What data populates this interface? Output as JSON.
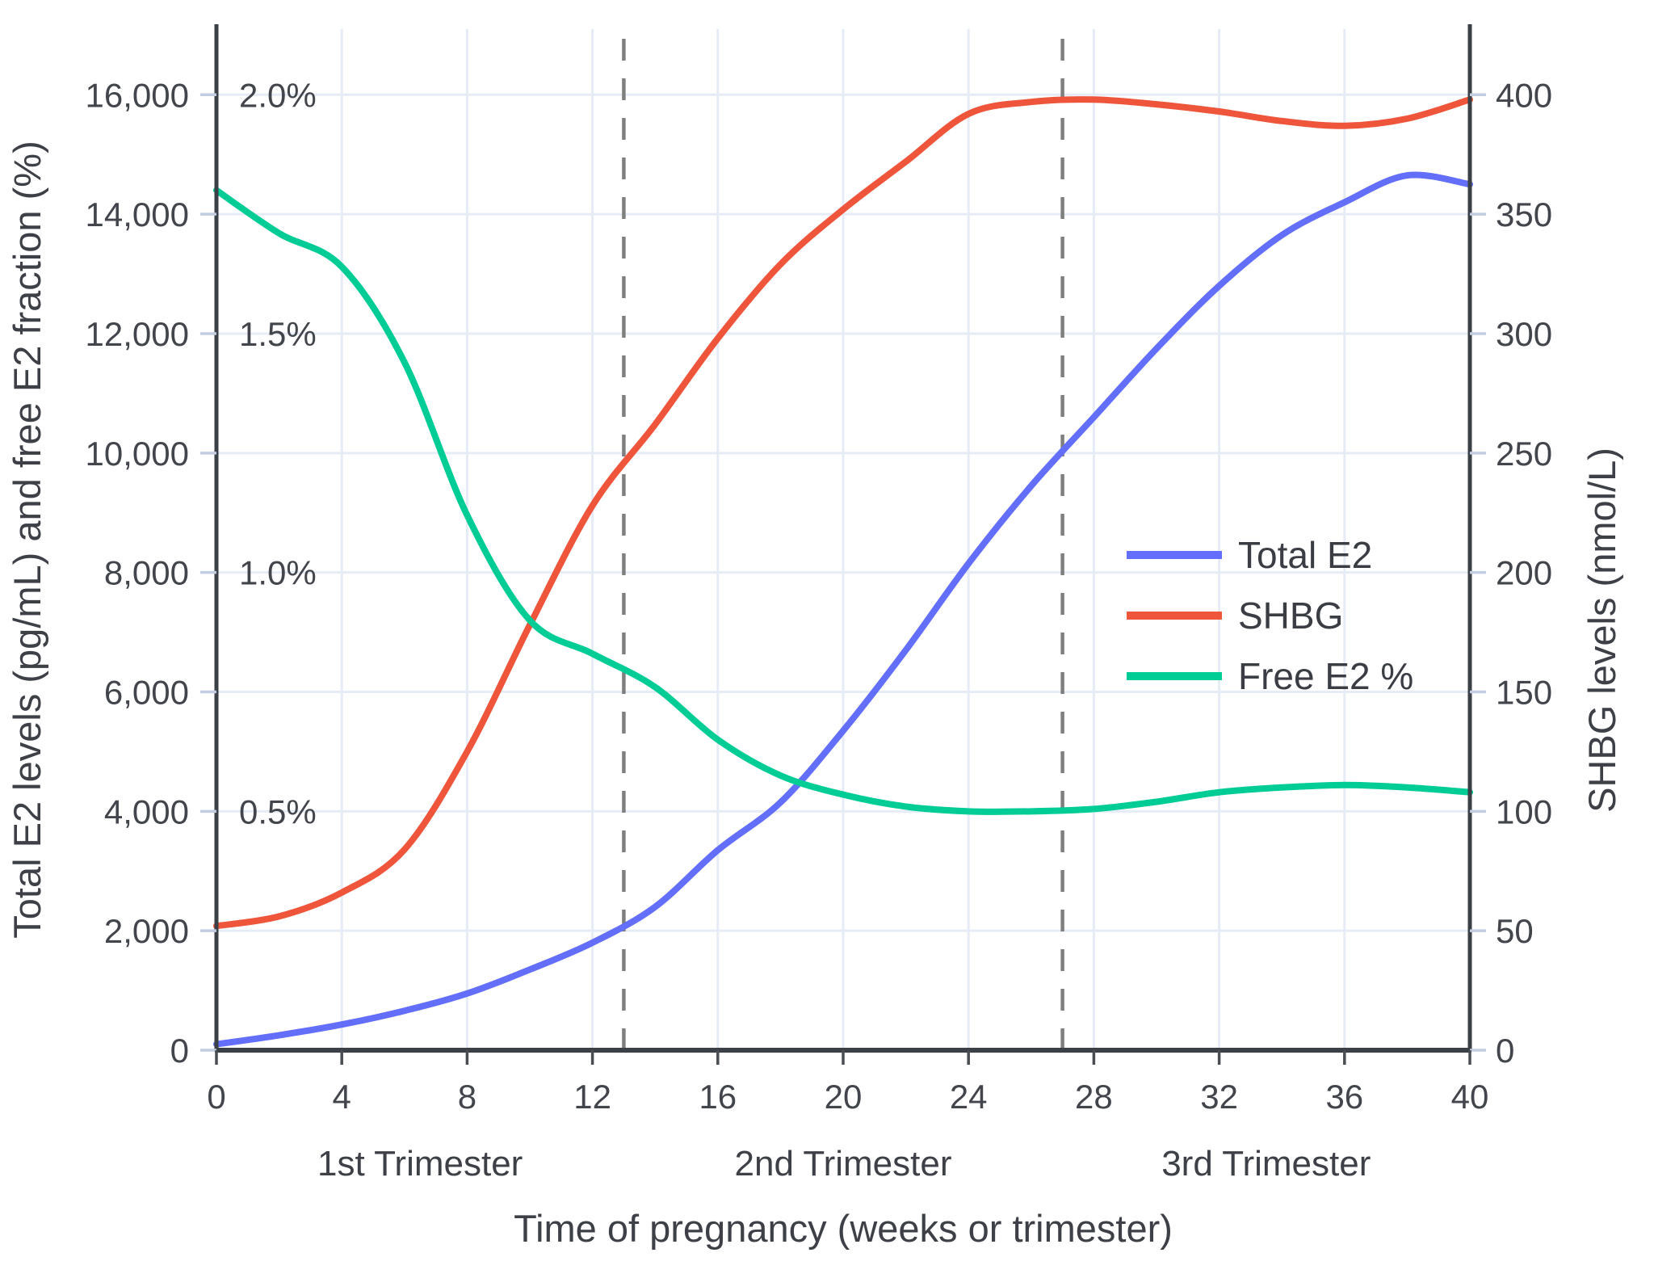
{
  "chart_data": {
    "type": "line",
    "title": "",
    "xlabel": "Time of pregnancy (weeks or trimester)",
    "ylabel_left": "Total E2 levels (pg/mL) and free E2 fraction (%)",
    "ylabel_right": "SHBG levels (nmol/L)",
    "x": [
      0,
      2,
      4,
      6,
      8,
      10,
      12,
      14,
      16,
      18,
      20,
      22,
      24,
      26,
      28,
      30,
      32,
      34,
      36,
      38,
      40
    ],
    "series": [
      {
        "name": "Total E2",
        "axis": "left",
        "color": "#636EFA",
        "values": [
          100,
          250,
          430,
          660,
          950,
          1350,
          1800,
          2400,
          3350,
          4150,
          5350,
          6700,
          8150,
          9450,
          10600,
          11750,
          12800,
          13650,
          14200,
          14650,
          14500
        ]
      },
      {
        "name": "SHBG",
        "axis": "right",
        "color": "#EF553B",
        "values": [
          52,
          56,
          66,
          84,
          125,
          178,
          228,
          262,
          298,
          329,
          352,
          372,
          392,
          397,
          398,
          396,
          393,
          389,
          387,
          390,
          398
        ]
      },
      {
        "name": "Free E2 %",
        "axis": "left_pct",
        "color": "#00CC96",
        "values": [
          1.8,
          1.71,
          1.64,
          1.44,
          1.12,
          0.9,
          0.83,
          0.76,
          0.65,
          0.575,
          0.535,
          0.51,
          0.5,
          0.5,
          0.505,
          0.52,
          0.54,
          0.55,
          0.555,
          0.55,
          0.54
        ]
      }
    ],
    "unit_conversion": {
      "pct_to_left": 8000,
      "right_to_left": 40
    },
    "xlim": [
      0,
      40
    ],
    "ylim_left": [
      0,
      17100
    ],
    "ylim_right": [
      0,
      427.5
    ],
    "grid": true,
    "x_ticks": {
      "values": [
        0,
        4,
        8,
        12,
        16,
        20,
        24,
        28,
        32,
        36,
        40
      ],
      "labels": [
        "0",
        "4",
        "8",
        "12",
        "16",
        "20",
        "24",
        "28",
        "32",
        "36",
        "40"
      ]
    },
    "left_ticks": {
      "values": [
        0,
        2000,
        4000,
        6000,
        8000,
        10000,
        12000,
        14000,
        16000
      ],
      "labels": [
        "0",
        "2,000",
        "4,000",
        "6,000",
        "8,000",
        "10,000",
        "12,000",
        "14,000",
        "16,000"
      ]
    },
    "pct_annotations": [
      {
        "value": 4000,
        "label": "0.5%"
      },
      {
        "value": 8000,
        "label": "1.0%"
      },
      {
        "value": 12000,
        "label": "1.5%"
      },
      {
        "value": 16000,
        "label": "2.0%"
      }
    ],
    "right_ticks": {
      "values": [
        0,
        50,
        100,
        150,
        200,
        250,
        300,
        350,
        400
      ],
      "labels": [
        "0",
        "50",
        "100",
        "150",
        "200",
        "250",
        "300",
        "350",
        "400"
      ]
    },
    "trimester_divider_weeks": [
      13,
      27
    ],
    "trimester_labels": [
      {
        "label": "1st Trimester",
        "week": 6.5
      },
      {
        "label": "2nd Trimester",
        "week": 20
      },
      {
        "label": "3rd Trimester",
        "week": 33.5
      }
    ],
    "legend": {
      "position": "inside-right",
      "items": [
        {
          "label": "Total E2",
          "color": "#636EFA"
        },
        {
          "label": "SHBG",
          "color": "#EF553B"
        },
        {
          "label": "Free E2 %",
          "color": "#00CC96"
        }
      ]
    }
  },
  "styles": {
    "background": "#ffffff",
    "grid_color": "#e6ecf6",
    "axis_color": "#3b3f46",
    "tick_color_dark": "#4a4d53",
    "tick_color_light": "#c2cde2",
    "dashed_line_color": "#7f7f7f",
    "text_color": "#42454c"
  }
}
